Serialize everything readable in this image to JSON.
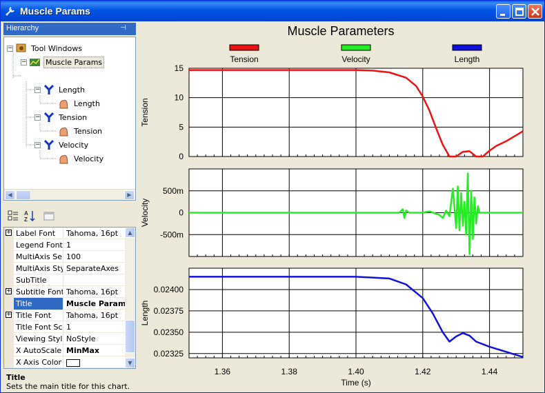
{
  "window": {
    "title": "Muscle Params"
  },
  "hierarchy": {
    "header": "Hierarchy",
    "pin_icon": "pin-icon",
    "nodes": [
      {
        "label": "Tool Windows",
        "icon": "tool-windows-icon",
        "expander": "−"
      },
      {
        "label": "Muscle Params",
        "icon": "chart-icon",
        "expander": "−",
        "selected": true
      },
      {
        "label": "Length",
        "icon": "axis-y-icon",
        "expander": "−"
      },
      {
        "label": "Length",
        "icon": "series-icon"
      },
      {
        "label": "Tension",
        "icon": "axis-y-icon",
        "expander": "−"
      },
      {
        "label": "Tension",
        "icon": "series-icon"
      },
      {
        "label": "Velocity",
        "icon": "axis-y-icon",
        "expander": "−"
      },
      {
        "label": "Velocity",
        "icon": "series-icon"
      }
    ]
  },
  "properties": {
    "toolbar_icons": [
      "categorized-icon",
      "alphabetical-icon",
      "property-pages-icon"
    ],
    "rows": [
      {
        "name": "Label Font",
        "value": "Tahoma, 16pt",
        "expandable": true
      },
      {
        "name": "Legend Font",
        "value": "1"
      },
      {
        "name": "MultiAxis Sep",
        "value": "100"
      },
      {
        "name": "MultiAxis Sty",
        "value": "SeparateAxes"
      },
      {
        "name": "SubTitle",
        "value": ""
      },
      {
        "name": "Subtitle Font",
        "value": "Tahoma, 16pt",
        "expandable": true
      },
      {
        "name": "Title",
        "value": "Muscle Param",
        "selected": true,
        "bold": true
      },
      {
        "name": "Title Font",
        "value": "Tahoma, 16pt",
        "expandable": true
      },
      {
        "name": "Title Font Sca",
        "value": "1"
      },
      {
        "name": "Viewing Style",
        "value": "NoStyle"
      },
      {
        "name": "X AutoScale",
        "value": "MinMax",
        "bold": true
      },
      {
        "name": "X Axis Color",
        "value": "",
        "color": "#ffffff"
      }
    ],
    "description": {
      "title": "Title",
      "text": "Sets the main title for this chart."
    }
  },
  "colors": {
    "tension": "#ee1111",
    "velocity": "#22ee22",
    "length": "#1111dd"
  },
  "chart_data": {
    "type": "line",
    "title": "Muscle Parameters",
    "xlabel": "Time (s)",
    "x_range": [
      1.35,
      1.45
    ],
    "x_ticks": [
      1.36,
      1.38,
      1.4,
      1.42,
      1.44
    ],
    "x_tick_labels": [
      "1.36",
      "1.38",
      "1.40",
      "1.42",
      "1.44"
    ],
    "legend": [
      "Tension",
      "Velocity",
      "Length"
    ],
    "legend_position": "top",
    "grid": true,
    "panels": [
      {
        "name": "Tension",
        "ylabel": "Tension",
        "ylim": [
          0,
          15
        ],
        "y_ticks": [
          0,
          5,
          10,
          15
        ],
        "y_tick_labels": [
          "0",
          "5",
          "10",
          "15"
        ],
        "x": [
          1.35,
          1.4,
          1.405,
          1.41,
          1.415,
          1.418,
          1.42,
          1.422,
          1.424,
          1.426,
          1.428,
          1.43,
          1.432,
          1.434,
          1.436,
          1.438,
          1.44,
          1.442,
          1.445,
          1.45
        ],
        "y": [
          14.7,
          14.7,
          14.6,
          14.3,
          13.4,
          12.0,
          10.2,
          7.8,
          4.8,
          2.0,
          0.0,
          0.0,
          0.8,
          0.9,
          0.0,
          0.0,
          1.0,
          1.8,
          2.6,
          4.3
        ]
      },
      {
        "name": "Velocity",
        "ylabel": "Velocity",
        "ylim": [
          -1.0,
          1.0
        ],
        "y_ticks": [
          -0.5,
          0,
          0.5
        ],
        "y_tick_labels": [
          "-500m",
          "0",
          "500m"
        ],
        "x": [
          1.35,
          1.413,
          1.414,
          1.4145,
          1.415,
          1.416,
          1.42,
          1.422,
          1.425,
          1.426,
          1.427,
          1.428,
          1.429,
          1.43,
          1.4305,
          1.431,
          1.4315,
          1.432,
          1.4325,
          1.433,
          1.4335,
          1.434,
          1.4345,
          1.435,
          1.4355,
          1.436,
          1.4365,
          1.437,
          1.44,
          1.45
        ],
        "y": [
          0.0,
          0.0,
          0.08,
          -0.12,
          0.05,
          0.0,
          0.0,
          0.03,
          -0.05,
          -0.12,
          0.05,
          -0.08,
          0.55,
          -0.35,
          0.6,
          -0.4,
          0.45,
          -0.3,
          0.25,
          -0.5,
          0.9,
          -0.95,
          0.5,
          -0.6,
          0.35,
          -0.25,
          0.15,
          0.0,
          0.0,
          0.0
        ]
      },
      {
        "name": "Length",
        "ylabel": "Length",
        "ylim": [
          0.0232,
          0.02425
        ],
        "y_ticks": [
          0.02325,
          0.0235,
          0.02375,
          0.024
        ],
        "y_tick_labels": [
          "0.02325",
          "0.02350",
          "0.02375",
          "0.02400"
        ],
        "x": [
          1.35,
          1.4,
          1.41,
          1.415,
          1.42,
          1.423,
          1.426,
          1.428,
          1.43,
          1.432,
          1.434,
          1.436,
          1.44,
          1.445,
          1.45
        ],
        "y": [
          0.02415,
          0.02415,
          0.02413,
          0.02406,
          0.0239,
          0.02372,
          0.0235,
          0.02339,
          0.02345,
          0.02349,
          0.02346,
          0.02339,
          0.02333,
          0.02327,
          0.02321
        ]
      }
    ]
  }
}
